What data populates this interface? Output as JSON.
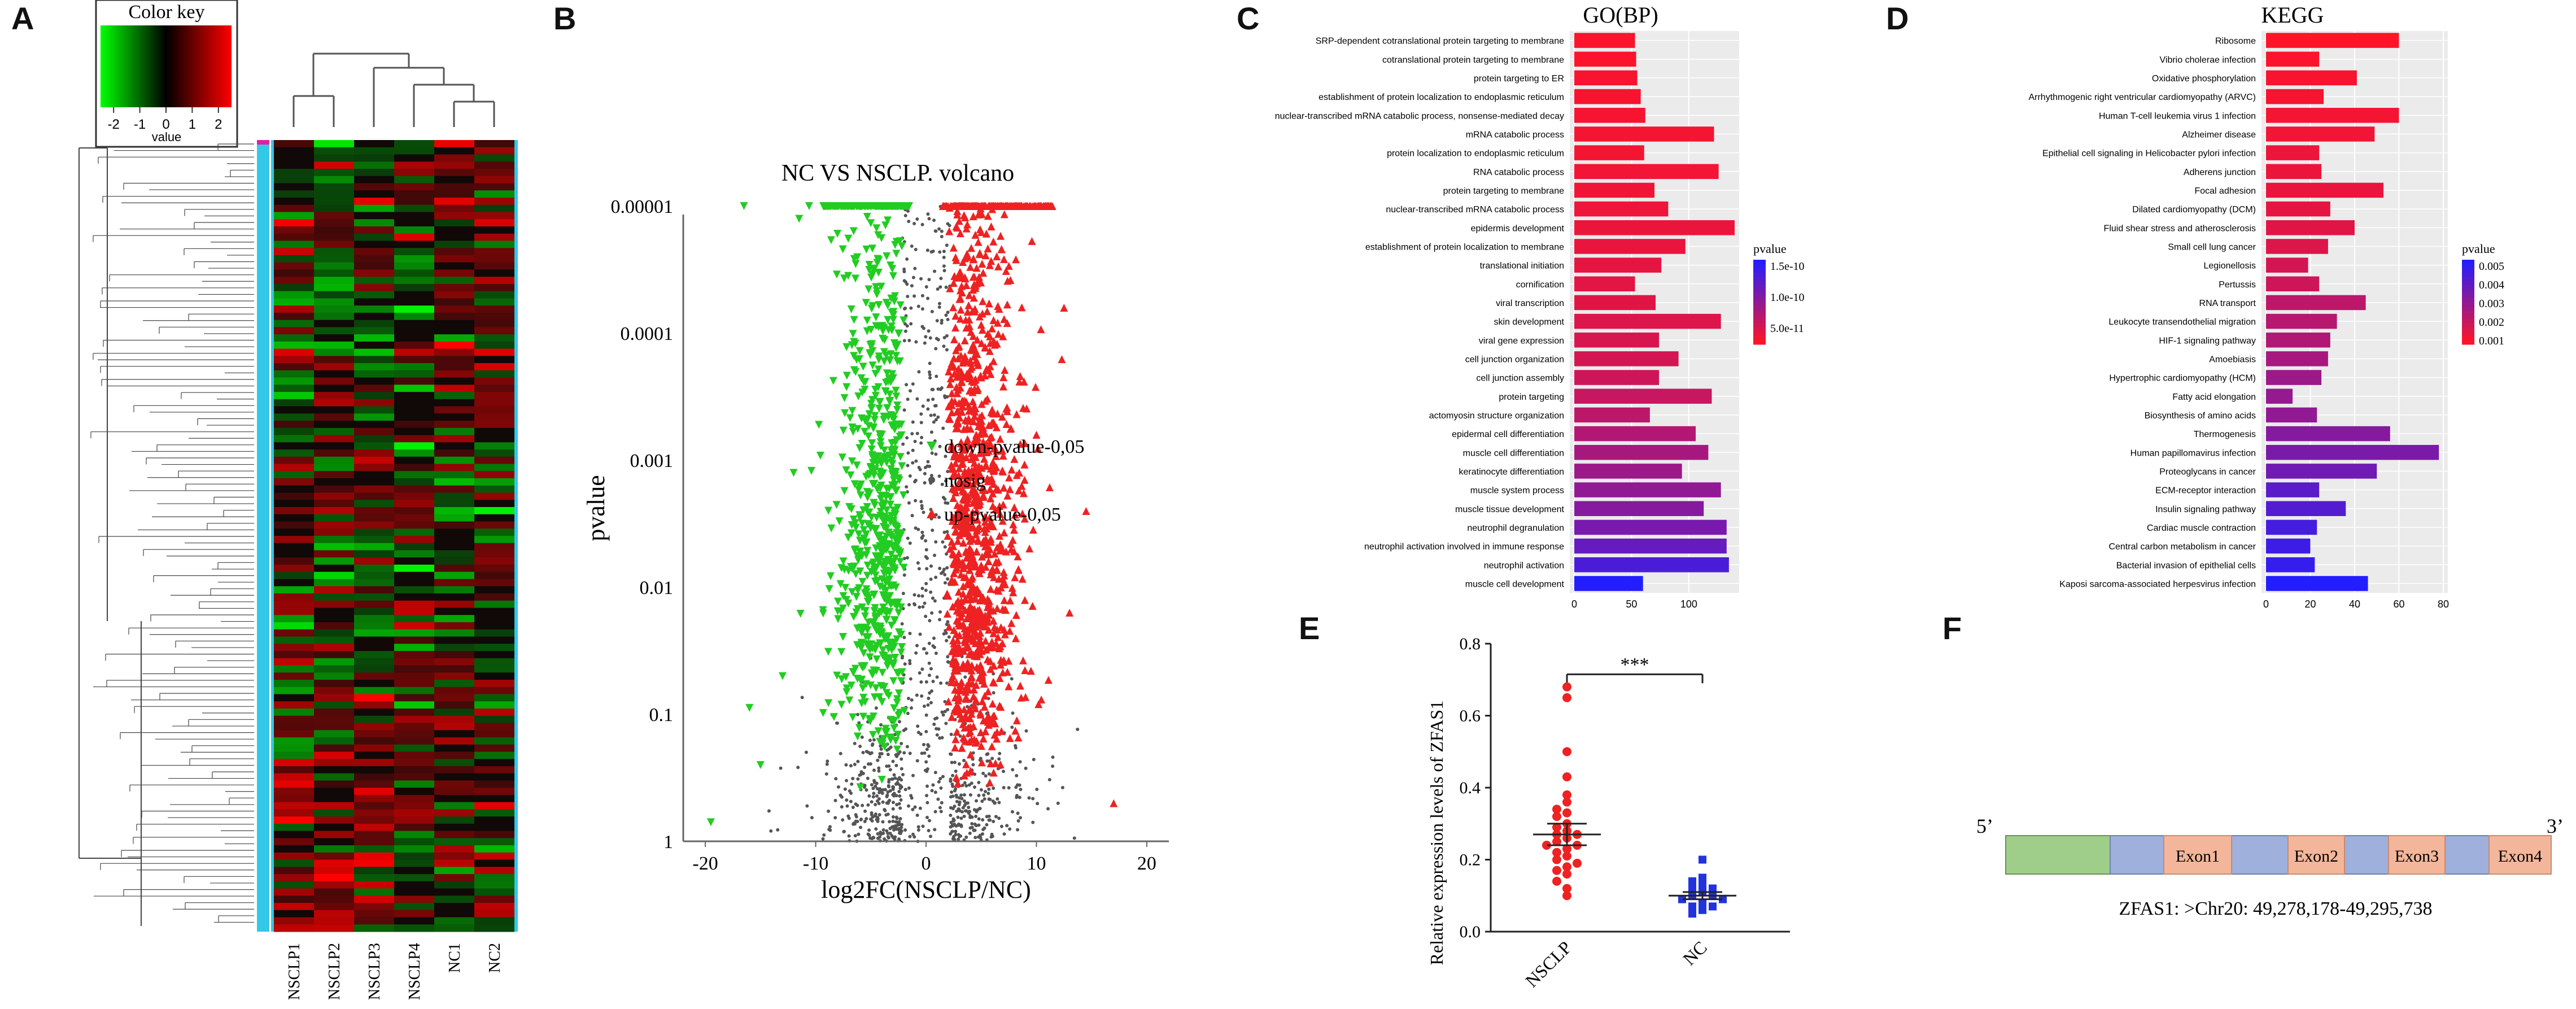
{
  "panel_labels": {
    "A": "A",
    "B": "B",
    "C": "C",
    "D": "D",
    "E": "E",
    "F": "F"
  },
  "colors": {
    "green": "#22cc22",
    "red": "#ee2222",
    "black": "#111111",
    "grey": "#555555",
    "cyan": "#33c8e8",
    "magenta": "#e020a0",
    "blue": "#2233dd",
    "bar_red": "#ff1a1a",
    "exon": "#f4b69a",
    "intron": "#9fb0dc",
    "utr": "#9fce8a"
  },
  "chart_data": [
    {
      "id": "A",
      "type": "heatmap",
      "title": "Color key",
      "legend_label": "value",
      "legend_ticks": [
        "-2",
        "-1",
        "0",
        "1",
        "2"
      ],
      "legend_range": [
        -2.5,
        2.5
      ],
      "columns": [
        "NSCLP1",
        "NSCLP2",
        "NSCLP3",
        "NSCLP4",
        "NC1",
        "NC2"
      ]
    },
    {
      "id": "B",
      "type": "scatter",
      "title": "NC VS NSCLP. volcano",
      "xlabel": "log2FC(NSCLP/NC)",
      "ylabel": "pvalue",
      "x_ticks": [
        "-20",
        "-10",
        "0",
        "10",
        "20"
      ],
      "xlim": [
        -22,
        22
      ],
      "y_ticks": [
        "0.00001",
        "0.0001",
        "0.001",
        "0.01",
        "0.1",
        "1"
      ],
      "ylim_log10": [
        0,
        5
      ],
      "legend": [
        {
          "label": "down-pvalue-0,05",
          "color": "#22cc22",
          "marker": "down-triangle"
        },
        {
          "label": "nosig",
          "color": "#555555",
          "marker": "dot"
        },
        {
          "label": "up-pvalue-0,05",
          "color": "#ee2222",
          "marker": "up-triangle"
        }
      ]
    },
    {
      "id": "C",
      "type": "bar",
      "orientation": "horizontal",
      "title": "GO(BP)",
      "xlim": [
        0,
        140
      ],
      "x_ticks": [
        0,
        50,
        100
      ],
      "legend_title": "pvalue",
      "legend_ticks": [
        "1.5e-10",
        "1.0e-10",
        "5.0e-11"
      ],
      "categories": [
        "SRP-dependent cotranslational protein targeting to membrane",
        "cotranslational protein targeting to membrane",
        "protein targeting to ER",
        "establishment of protein localization to endoplasmic reticulum",
        "nuclear-transcribed mRNA catabolic process, nonsense-mediated decay",
        "mRNA catabolic process",
        "protein localization to endoplasmic reticulum",
        "RNA catabolic process",
        "protein targeting to membrane",
        "nuclear-transcribed mRNA catabolic process",
        "epidermis development",
        "establishment of protein localization to membrane",
        "translational initiation",
        "cornification",
        "viral transcription",
        "skin development",
        "viral gene expression",
        "cell junction organization",
        "cell junction assembly",
        "protein targeting",
        "actomyosin structure organization",
        "epidermal cell differentiation",
        "muscle cell differentiation",
        "keratinocyte differentiation",
        "muscle system process",
        "muscle tissue development",
        "neutrophil degranulation",
        "neutrophil activation involved in immune response",
        "neutrophil activation",
        "muscle cell development"
      ],
      "values": [
        53,
        54,
        55,
        58,
        62,
        122,
        61,
        126,
        70,
        82,
        140,
        97,
        76,
        53,
        71,
        128,
        74,
        91,
        74,
        120,
        66,
        106,
        117,
        94,
        128,
        113,
        133,
        133,
        135,
        60
      ],
      "pvalue_shade": [
        0.02,
        0.02,
        0.03,
        0.03,
        0.04,
        0.05,
        0.05,
        0.06,
        0.07,
        0.08,
        0.09,
        0.1,
        0.12,
        0.13,
        0.14,
        0.16,
        0.18,
        0.2,
        0.23,
        0.26,
        0.3,
        0.35,
        0.4,
        0.45,
        0.5,
        0.55,
        0.62,
        0.7,
        0.82,
        1.0
      ]
    },
    {
      "id": "D",
      "type": "bar",
      "orientation": "horizontal",
      "title": "KEGG",
      "xlim": [
        0,
        80
      ],
      "x_ticks": [
        0,
        20,
        40,
        60,
        80
      ],
      "legend_title": "pvalue",
      "legend_ticks": [
        "0.005",
        "0.004",
        "0.003",
        "0.002",
        "0.001"
      ],
      "categories": [
        "Ribosome",
        "Vibrio cholerae infection",
        "Oxidative phosphorylation",
        "Arrhythmogenic right ventricular cardiomyopathy (ARVC)",
        "Human T-cell leukemia virus 1 infection",
        "Alzheimer disease",
        "Epithelial cell signaling in Helicobacter pylori infection",
        "Adherens junction",
        "Focal adhesion",
        "Dilated cardiomyopathy (DCM)",
        "Fluid shear stress and atherosclerosis",
        "Small cell lung cancer",
        "Legionellosis",
        "Pertussis",
        "RNA transport",
        "Leukocyte transendothelial migration",
        "HIF-1 signaling pathway",
        "Amoebiasis",
        "Hypertrophic cardiomyopathy (HCM)",
        "Fatty acid elongation",
        "Biosynthesis of amino acids",
        "Thermogenesis",
        "Human papillomavirus infection",
        "Proteoglycans in cancer",
        "ECM-receptor interaction",
        "Insulin signaling pathway",
        "Cardiac muscle contraction",
        "Central carbon metabolism in cancer",
        "Bacterial invasion of epithelial cells",
        "Kaposi sarcoma-associated herpesvirus infection"
      ],
      "values": [
        60,
        24,
        41,
        26,
        60,
        49,
        24,
        25,
        53,
        29,
        40,
        28,
        19,
        24,
        45,
        32,
        29,
        28,
        25,
        12,
        23,
        56,
        78,
        50,
        24,
        36,
        23,
        20,
        22,
        46
      ],
      "pvalue_shade": [
        0.0,
        0.02,
        0.03,
        0.04,
        0.05,
        0.06,
        0.08,
        0.09,
        0.1,
        0.12,
        0.14,
        0.16,
        0.2,
        0.23,
        0.3,
        0.33,
        0.36,
        0.4,
        0.45,
        0.48,
        0.5,
        0.55,
        0.6,
        0.65,
        0.75,
        0.78,
        0.85,
        0.88,
        0.92,
        1.0
      ]
    },
    {
      "id": "E",
      "type": "scatter",
      "subtype": "dot-plot",
      "ylabel": "Relative expression levels of ZFAS1",
      "categories": [
        "NSCLP",
        "NC"
      ],
      "ylim": [
        0,
        0.8
      ],
      "y_ticks": [
        "0.0",
        "0.2",
        "0.4",
        "0.6",
        "0.8"
      ],
      "significance": "***",
      "series": [
        {
          "name": "NSCLP",
          "mean": 0.27,
          "sem": 0.03,
          "color": "#ee2222",
          "values": [
            0.68,
            0.65,
            0.5,
            0.43,
            0.38,
            0.36,
            0.34,
            0.33,
            0.32,
            0.3,
            0.29,
            0.28,
            0.27,
            0.27,
            0.26,
            0.25,
            0.24,
            0.24,
            0.23,
            0.22,
            0.21,
            0.2,
            0.19,
            0.18,
            0.17,
            0.16,
            0.14,
            0.12,
            0.1
          ]
        },
        {
          "name": "NC",
          "mean": 0.1,
          "sem": 0.01,
          "color": "#2233dd",
          "values": [
            0.2,
            0.15,
            0.14,
            0.13,
            0.12,
            0.12,
            0.11,
            0.1,
            0.1,
            0.09,
            0.09,
            0.08,
            0.07,
            0.07,
            0.06,
            0.05
          ]
        }
      ]
    },
    {
      "id": "F",
      "type": "diagram",
      "left_end": "5’",
      "right_end": "3’",
      "exons": [
        "Exon1",
        "Exon2",
        "Exon3",
        "Exon4"
      ],
      "caption": "ZFAS1: >Chr20: 49,278,178-49,295,738"
    }
  ]
}
